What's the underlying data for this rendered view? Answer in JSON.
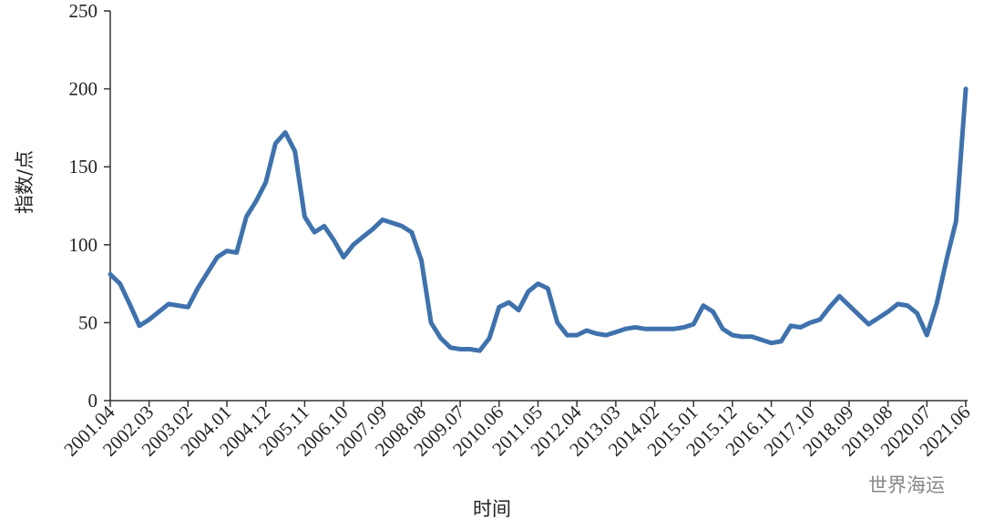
{
  "chart_data": {
    "type": "line",
    "x_label": "时间",
    "y_label": "指数/点",
    "watermark": "世界海运",
    "categories": [
      "2001.04",
      null,
      null,
      null,
      "2002.03",
      null,
      null,
      null,
      "2003.02",
      null,
      null,
      null,
      "2004.01",
      null,
      null,
      null,
      "2004.12",
      null,
      null,
      null,
      "2005.11",
      null,
      null,
      null,
      "2006.10",
      null,
      null,
      null,
      "2007.09",
      null,
      null,
      null,
      "2008.08",
      null,
      null,
      null,
      "2009.07",
      null,
      null,
      null,
      "2010.06",
      null,
      null,
      null,
      "2011.05",
      null,
      null,
      null,
      "2012.04",
      null,
      null,
      null,
      "2013.03",
      null,
      null,
      null,
      "2014.02",
      null,
      null,
      null,
      "2015.01",
      null,
      null,
      null,
      "2015.12",
      null,
      null,
      null,
      "2016.11",
      null,
      null,
      null,
      "2017.10",
      null,
      null,
      null,
      "2018.09",
      null,
      null,
      null,
      "2019.08",
      null,
      null,
      null,
      "2020.07",
      null,
      null,
      null,
      "2021.06"
    ],
    "series": [
      {
        "color": "#3f72ad",
        "values": [
          81,
          75,
          62,
          48,
          52,
          57,
          62,
          61,
          60,
          72,
          82,
          92,
          96,
          95,
          118,
          128,
          140,
          165,
          172,
          160,
          118,
          108,
          112,
          103,
          92,
          100,
          105,
          110,
          116,
          114,
          112,
          108,
          90,
          50,
          40,
          34,
          33,
          33,
          32,
          40,
          60,
          63,
          58,
          70,
          75,
          72,
          50,
          42,
          42,
          45,
          43,
          42,
          44,
          46,
          47,
          46,
          46,
          46,
          46,
          47,
          49,
          61,
          57,
          46,
          42,
          41,
          41,
          39,
          37,
          38,
          48,
          47,
          50,
          52,
          60,
          67,
          61,
          55,
          49,
          53,
          57,
          62,
          61,
          56,
          42,
          62,
          90,
          115,
          200
        ]
      }
    ],
    "ylim": [
      0,
      250
    ],
    "yticks": [
      0,
      50,
      100,
      150,
      200,
      250
    ],
    "grid": false
  }
}
